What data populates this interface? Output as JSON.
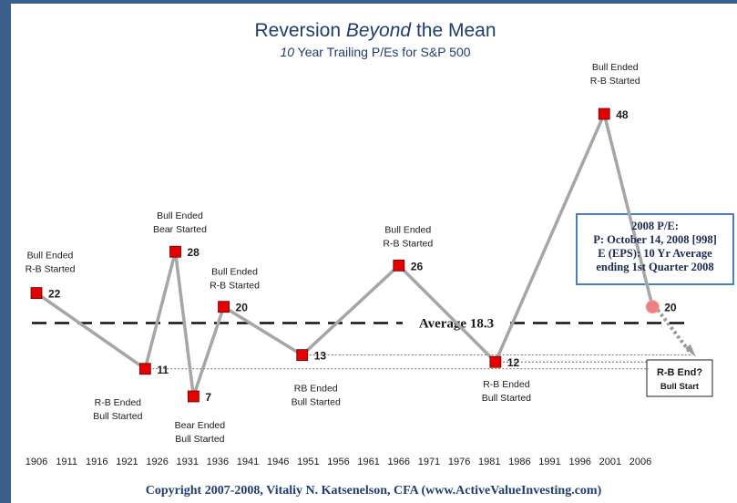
{
  "chart_data": {
    "type": "line",
    "title_parts": [
      "Reversion",
      "Beyond",
      "the Mean"
    ],
    "subtitle_parts": [
      "10",
      "Year Trailing P/Es for S&P 500"
    ],
    "x": [
      1906,
      1924,
      1929,
      1932,
      1937,
      1950,
      1966,
      1982,
      2000,
      2008
    ],
    "values": [
      22,
      11,
      28,
      7,
      20,
      13,
      26,
      12,
      48,
      20
    ],
    "color": "#a6a6a6",
    "marker_color": "#e60000",
    "last_marker_color": "#f08080",
    "xlim": [
      1906,
      2006
    ],
    "xticks": [
      1906,
      1911,
      1916,
      1921,
      1926,
      1931,
      1936,
      1941,
      1946,
      1951,
      1956,
      1961,
      1966,
      1971,
      1976,
      1981,
      1986,
      1991,
      1996,
      2001,
      2006
    ],
    "point_notes": [
      [
        "Bull Ended",
        "R-B Started"
      ],
      [
        "R-B Ended",
        "Bull Started"
      ],
      [
        "Bull Ended",
        "Bear Started"
      ],
      [
        "Bear Ended",
        "Bull Started"
      ],
      [
        "Bull Ended",
        "R-B Started"
      ],
      [
        "RB Ended",
        "Bull Started"
      ],
      [
        "Bull Ended",
        "R-B Started"
      ],
      [
        "R-B Ended",
        "Bull Started"
      ],
      [
        "Bull Ended",
        "R-B Started"
      ]
    ],
    "average": 18.3,
    "average_label": "Average 18.3",
    "box_2008": [
      "2008 P/E:",
      "P: October 14, 2008 [998]",
      "E (EPS):  10 Yr Average",
      "ending 1st Quarter 2008"
    ],
    "box_end": [
      "R-B End?",
      "Bull Start"
    ],
    "footer": "Copyright 2007-2008,  Vitaliy N. Katsenelson,  CFA (www.ActiveValueInvesting.com)"
  }
}
